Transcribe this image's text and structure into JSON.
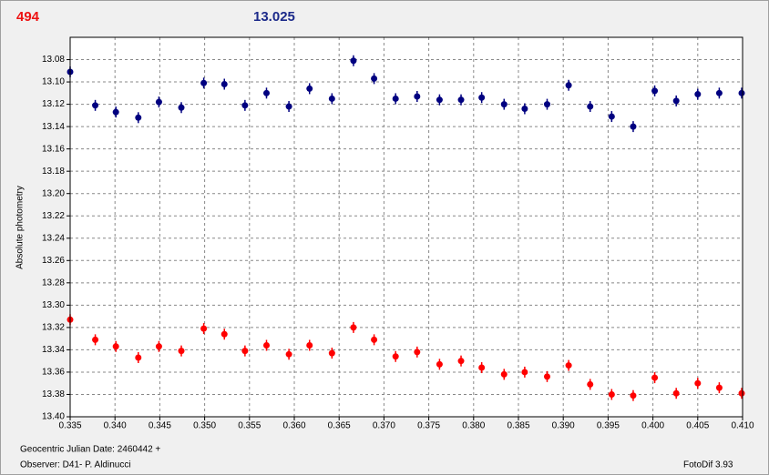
{
  "header": {
    "left_value": "494",
    "right_value": "13.025"
  },
  "chart_data": {
    "type": "scatter",
    "ylabel": "Absolute photometry",
    "xlim": [
      0.335,
      0.41
    ],
    "ylim": [
      13.06,
      13.4
    ],
    "y_inverted": true,
    "grid": true,
    "xticks": [
      0.335,
      {
        "value": 0.34,
        "label": "0.340"
      },
      0.345,
      {
        "value": 0.35,
        "label": "0.350"
      },
      0.355,
      {
        "value": 0.36,
        "label": "0.360"
      },
      0.365,
      {
        "value": 0.37,
        "label": "0.370"
      },
      0.375,
      {
        "value": 0.38,
        "label": "0.380"
      },
      0.385,
      {
        "value": 0.39,
        "label": "0.390"
      },
      0.395,
      {
        "value": 0.4,
        "label": "0.400"
      },
      0.405,
      {
        "value": 0.41,
        "label": "0.410"
      }
    ],
    "yticks": [
      13.08,
      {
        "value": 13.1,
        "label": "13.10"
      },
      13.12,
      13.14,
      13.16,
      13.18,
      {
        "value": 13.2,
        "label": "13.20"
      },
      13.22,
      13.24,
      13.26,
      13.28,
      {
        "value": 13.3,
        "label": "13.30"
      },
      13.32,
      13.34,
      13.36,
      13.38,
      {
        "value": 13.4,
        "label": "13.40"
      }
    ],
    "x": [
      0.335,
      0.3378,
      0.3401,
      0.3426,
      0.3449,
      0.3474,
      0.3499,
      0.3522,
      0.3545,
      0.3569,
      0.3594,
      0.3617,
      0.3642,
      0.3666,
      0.3689,
      0.3713,
      0.3737,
      0.3762,
      0.3786,
      0.3809,
      0.3834,
      0.3857,
      0.3882,
      0.3906,
      0.393,
      0.3954,
      0.3978,
      0.4002,
      0.4026,
      0.405,
      0.4074,
      0.4099
    ],
    "series": [
      {
        "color": "#000080",
        "values": [
          13.091,
          13.121,
          13.127,
          13.132,
          13.118,
          13.123,
          13.101,
          13.102,
          13.121,
          13.11,
          13.122,
          13.106,
          13.115,
          13.081,
          13.097,
          13.115,
          13.113,
          13.116,
          13.116,
          13.114,
          13.12,
          13.124,
          13.12,
          13.103,
          13.122,
          13.131,
          13.14,
          13.108,
          13.117,
          13.111,
          13.11,
          13.11
        ]
      },
      {
        "color": "#ff0000",
        "values": [
          13.313,
          13.331,
          13.337,
          13.347,
          13.337,
          13.341,
          13.321,
          13.326,
          13.341,
          13.336,
          13.344,
          13.336,
          13.343,
          13.32,
          13.331,
          13.346,
          13.342,
          13.353,
          13.35,
          13.356,
          13.362,
          13.36,
          13.364,
          13.354,
          13.371,
          13.38,
          13.381,
          13.365,
          13.379,
          13.37,
          13.374,
          13.379
        ]
      }
    ]
  },
  "footer": {
    "date": "Geocentric Julian Date: 2460442 +",
    "observer": "Observer: D41- P. Aldinucci",
    "software": "FotoDif 3.93"
  }
}
